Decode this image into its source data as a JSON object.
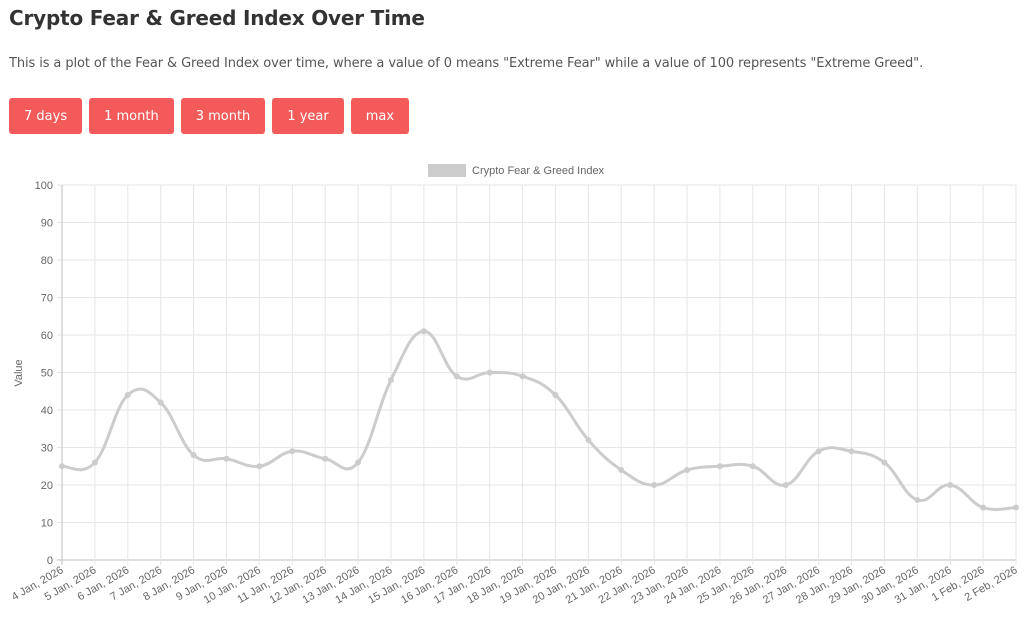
{
  "header": {
    "title": "Crypto Fear & Greed Index Over Time",
    "description": "This is a plot of the Fear & Greed Index over time, where a value of 0 means \"Extreme Fear\" while a value of 100 represents \"Extreme Greed\"."
  },
  "range_buttons": [
    {
      "label": "7 days"
    },
    {
      "label": "1 month"
    },
    {
      "label": "3 month"
    },
    {
      "label": "1 year"
    },
    {
      "label": "max"
    }
  ],
  "colors": {
    "button_bg": "#f35b5b",
    "line": "#cccccc",
    "grid": "#e6e6e6",
    "axis": "#bfbfbf",
    "tick_text": "#666666"
  },
  "chart_data": {
    "type": "line",
    "title": "",
    "legend": [
      "Crypto Fear & Greed Index"
    ],
    "legend_position": "top",
    "xlabel": "",
    "ylabel": "Value",
    "ylim": [
      0,
      100
    ],
    "yticks": [
      0,
      10,
      20,
      30,
      40,
      50,
      60,
      70,
      80,
      90,
      100
    ],
    "grid": true,
    "categories": [
      "4 Jan, 2026",
      "5 Jan, 2026",
      "6 Jan, 2026",
      "7 Jan, 2026",
      "8 Jan, 2026",
      "9 Jan, 2026",
      "10 Jan, 2026",
      "11 Jan, 2026",
      "12 Jan, 2026",
      "13 Jan, 2026",
      "14 Jan, 2026",
      "15 Jan, 2026",
      "16 Jan, 2026",
      "17 Jan, 2026",
      "18 Jan, 2026",
      "19 Jan, 2026",
      "20 Jan, 2026",
      "21 Jan, 2026",
      "22 Jan, 2026",
      "23 Jan, 2026",
      "24 Jan, 2026",
      "25 Jan, 2026",
      "26 Jan, 2026",
      "27 Jan, 2026",
      "28 Jan, 2026",
      "29 Jan, 2026",
      "30 Jan, 2026",
      "31 Jan, 2026",
      "1 Feb, 2026",
      "2 Feb, 2026"
    ],
    "series": [
      {
        "name": "Crypto Fear & Greed Index",
        "values": [
          25,
          26,
          44,
          42,
          28,
          27,
          25,
          29,
          27,
          26,
          48,
          61,
          49,
          50,
          49,
          44,
          32,
          24,
          20,
          24,
          25,
          25,
          20,
          29,
          29,
          26,
          16,
          20,
          14,
          14
        ]
      }
    ]
  }
}
